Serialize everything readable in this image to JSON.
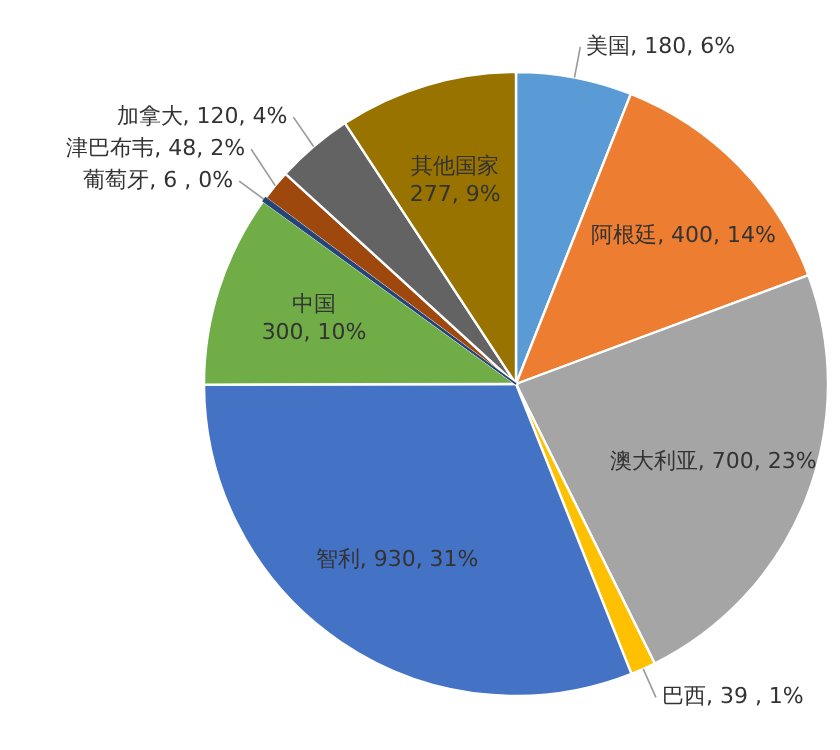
{
  "chart_data": {
    "type": "pie",
    "categories": [
      "美国",
      "阿根廷",
      "澳大利亚",
      "巴西",
      "智利",
      "中国",
      "葡萄牙",
      "津巴布韦",
      "加拿大",
      "其他国家"
    ],
    "values": [
      180,
      400,
      700,
      39,
      930,
      300,
      6,
      48,
      120,
      277
    ],
    "colors": [
      "#5b9bd5",
      "#ed7d31",
      "#a5a5a5",
      "#ffc000",
      "#4472c4",
      "#70ad47",
      "#264478",
      "#9e480e",
      "#636363",
      "#997300"
    ],
    "value_labels": [
      "180, 6%",
      "400, 14%",
      "700, 23%",
      "39 , 1%",
      "930, 31%",
      "300, 10%",
      "6 , 0%",
      "48, 2%",
      "120, 4%",
      "277, 9%"
    ]
  }
}
